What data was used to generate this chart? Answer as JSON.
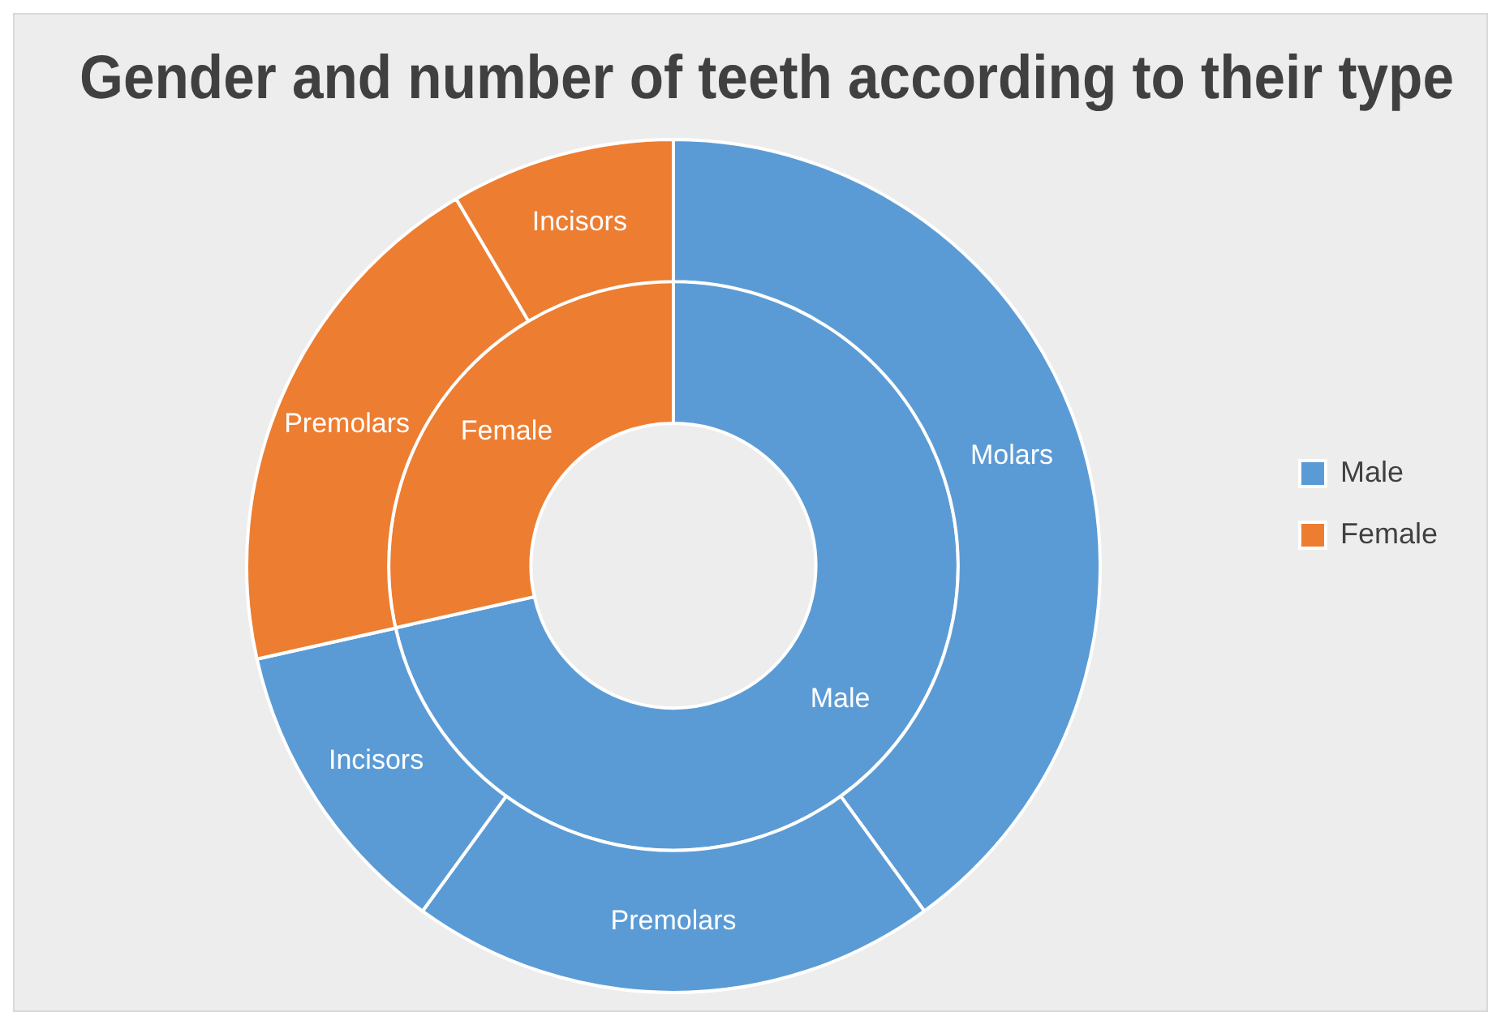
{
  "chart_data": [
    {
      "type": "donut",
      "title": "Gender and number of teeth according to their type",
      "legend": "right",
      "categories": [
        "Male",
        "Female"
      ],
      "values": [
        71.5,
        28.5
      ],
      "colors": [
        "#5b9bd5",
        "#ed7d31"
      ]
    },
    {
      "type": "donut",
      "categories": [
        "Molars",
        "Premolars",
        "Incisors",
        "Premolars",
        "Incisors"
      ],
      "values": [
        40,
        20,
        11.5,
        20,
        8.5
      ],
      "colors": [
        "#5b9bd5",
        "#5b9bd5",
        "#5b9bd5",
        "#ed7d31",
        "#ed7d31"
      ]
    }
  ]
}
